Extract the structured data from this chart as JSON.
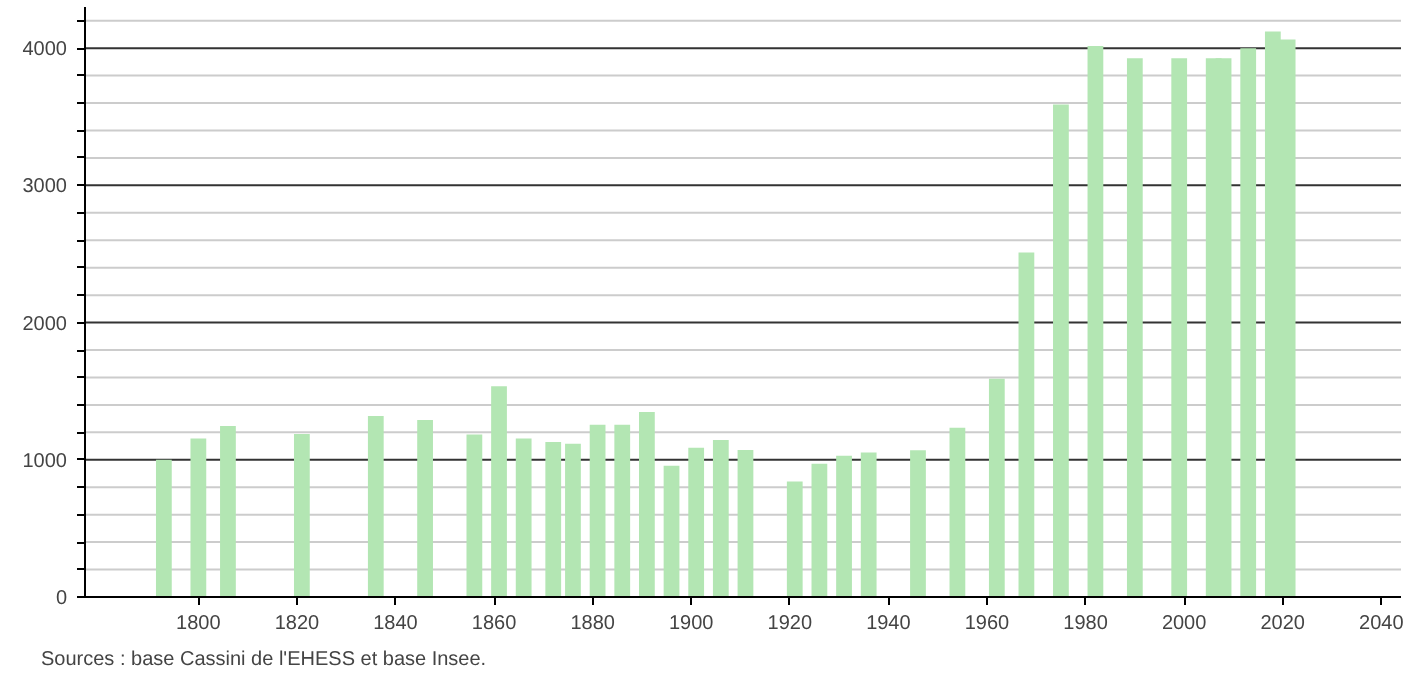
{
  "chart_data": {
    "type": "bar",
    "x": [
      1793,
      1800,
      1806,
      1821,
      1836,
      1846,
      1856,
      1861,
      1866,
      1872,
      1876,
      1881,
      1886,
      1891,
      1896,
      1901,
      1906,
      1911,
      1921,
      1926,
      1931,
      1936,
      1946,
      1954,
      1962,
      1968,
      1975,
      1982,
      1990,
      1999,
      2006,
      2008,
      2013,
      2018,
      2021
    ],
    "values": [
      1000,
      1155,
      1246,
      1188,
      1319,
      1290,
      1184,
      1536,
      1155,
      1130,
      1116,
      1256,
      1256,
      1348,
      957,
      1087,
      1145,
      1072,
      841,
      971,
      1029,
      1053,
      1069,
      1233,
      1591,
      2510,
      3589,
      4015,
      3927,
      3927,
      3927,
      3927,
      4000,
      4121,
      4063
    ],
    "color": "#b3e6b3",
    "xlim": [
      1777,
      2044
    ],
    "ylim": [
      0,
      4300
    ],
    "xticks": [
      1800,
      1820,
      1840,
      1860,
      1880,
      1900,
      1920,
      1940,
      1960,
      1980,
      2000,
      2020,
      2040
    ],
    "yticks": [
      0,
      {
        "value": 200,
        "label": null
      },
      {
        "value": 400,
        "label": null
      },
      {
        "value": 600,
        "label": null
      },
      {
        "value": 800,
        "label": null
      },
      1000,
      {
        "value": 1200,
        "label": null
      },
      {
        "value": 1400,
        "label": null
      },
      {
        "value": 1600,
        "label": null
      },
      {
        "value": 1800,
        "label": null
      },
      2000,
      {
        "value": 2200,
        "label": null
      },
      {
        "value": 2400,
        "label": null
      },
      {
        "value": 2600,
        "label": null
      },
      {
        "value": 2800,
        "label": null
      },
      3000,
      {
        "value": 3200,
        "label": null
      },
      {
        "value": 3400,
        "label": null
      },
      {
        "value": 3600,
        "label": null
      },
      {
        "value": 3800,
        "label": null
      },
      4000,
      {
        "value": 4200,
        "label": null
      }
    ],
    "grid": "y",
    "annotations": [
      "Sources : base Cassini de l'EHESS et base Insee."
    ]
  }
}
